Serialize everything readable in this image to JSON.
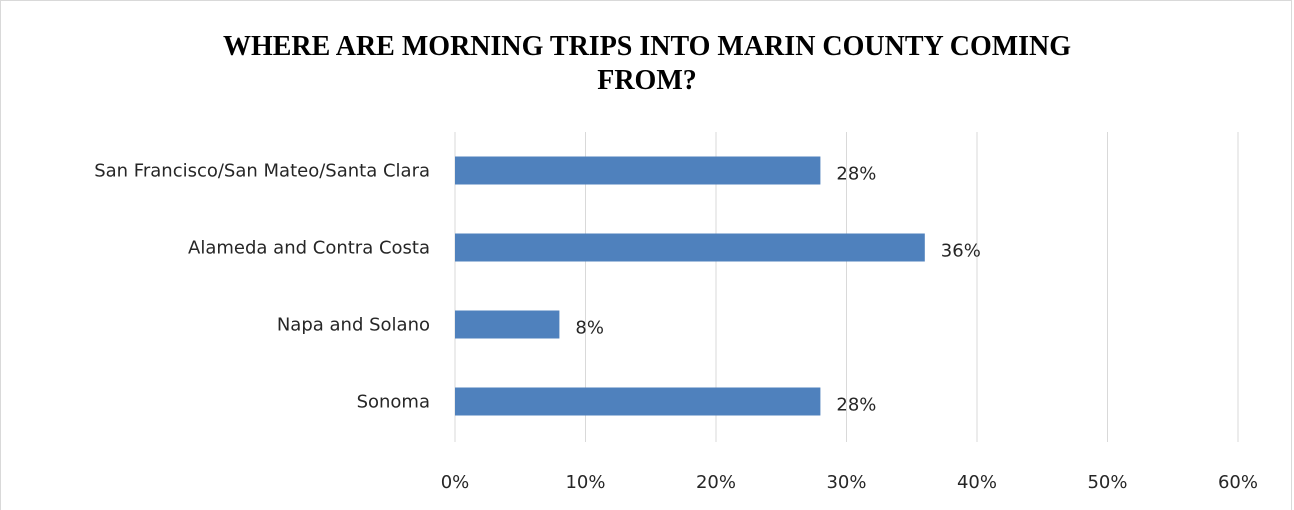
{
  "chart_data": {
    "type": "bar",
    "orientation": "horizontal",
    "title": "WHERE ARE MORNING TRIPS INTO MARIN COUNTY COMING FROM?",
    "title_lines": [
      "WHERE ARE MORNING TRIPS INTO MARIN COUNTY COMING",
      "FROM?"
    ],
    "categories": [
      "San Francisco/San Mateo/Santa Clara",
      "Alameda and Contra Costa",
      "Napa and Solano",
      "Sonoma"
    ],
    "values": [
      28,
      36,
      8,
      28
    ],
    "data_labels": [
      "28%",
      "36%",
      "8%",
      "28%"
    ],
    "xlim": [
      0,
      60
    ],
    "x_ticks": [
      0,
      10,
      20,
      30,
      40,
      50,
      60
    ],
    "x_tick_labels": [
      "0%",
      "10%",
      "20%",
      "30%",
      "40%",
      "50%",
      "60%"
    ],
    "grid": "vertical",
    "legend": "none",
    "bar_color": "#4f81bd",
    "grid_color": "#d9d9d9"
  }
}
